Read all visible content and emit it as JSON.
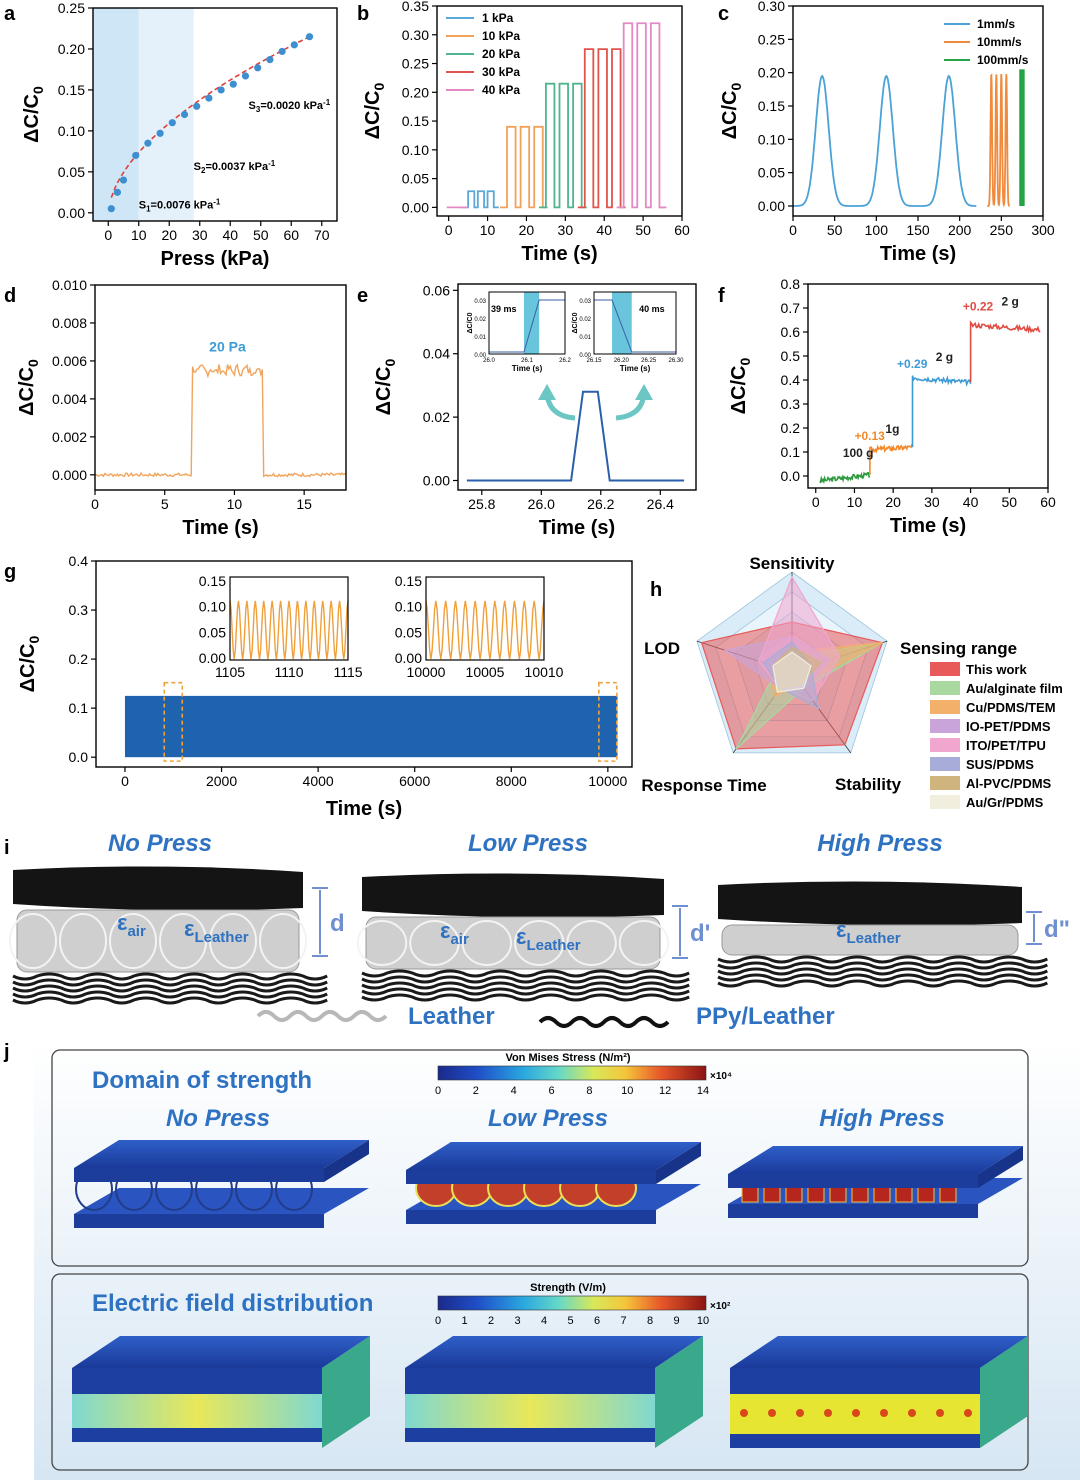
{
  "panel_letters": {
    "a": "a",
    "b": "b",
    "c": "c",
    "d": "d",
    "e": "e",
    "f": "f",
    "g": "g",
    "h": "h",
    "i": "i",
    "j": "j"
  },
  "chart_data": [
    {
      "panel": "a",
      "type": "scatter",
      "xlabel": "Press (kPa)",
      "ylabel": "ΔC/C0",
      "xlim": [
        -5,
        75
      ],
      "ylim": [
        -0.01,
        0.25
      ],
      "xticks": [
        "0",
        "10",
        "20",
        "30",
        "40",
        "50",
        "60",
        "70"
      ],
      "yticks": [
        "0.00",
        "0.05",
        "0.10",
        "0.15",
        "0.20",
        "0.25"
      ],
      "x": [
        1,
        3,
        5,
        9,
        13,
        17,
        21,
        25,
        29,
        33,
        37,
        41,
        45,
        49,
        53,
        57,
        61,
        66
      ],
      "y": [
        0.005,
        0.025,
        0.04,
        0.07,
        0.085,
        0.097,
        0.11,
        0.12,
        0.13,
        0.14,
        0.15,
        0.157,
        0.167,
        0.177,
        0.187,
        0.197,
        0.205,
        0.215
      ],
      "regions_kpa": [
        [
          0,
          10
        ],
        [
          10,
          28
        ]
      ],
      "annotations": [
        {
          "main": "S",
          "sub": "1",
          "val": "=0.0076 kPa",
          "sup": "-1",
          "x": 10,
          "y": 0.005
        },
        {
          "main": "S",
          "sub": "2",
          "val": "=0.0037 kPa",
          "sup": "-1",
          "x": 28,
          "y": 0.052
        },
        {
          "main": "S",
          "sub": "3",
          "val": "=0.0020 kPa",
          "sup": "-1",
          "x": 46,
          "y": 0.127
        }
      ]
    },
    {
      "panel": "b",
      "type": "line",
      "xlabel": "Time (s)",
      "ylabel": "ΔC/C0",
      "xlim": [
        -3,
        60
      ],
      "ylim": [
        -0.015,
        0.35
      ],
      "xticks": [
        "0",
        "10",
        "20",
        "30",
        "40",
        "50",
        "60"
      ],
      "yticks": [
        "0.00",
        "0.05",
        "0.10",
        "0.15",
        "0.20",
        "0.25",
        "0.30",
        "0.35"
      ],
      "series": [
        {
          "name": "1  kPa",
          "color": "#5aa8d8",
          "level": 0.028,
          "starts": [
            5,
            7.5,
            10
          ],
          "width": 1.6
        },
        {
          "name": "10 kPa",
          "color": "#f0a25a",
          "level": 0.14,
          "starts": [
            15,
            18.5,
            22
          ],
          "width": 2.2
        },
        {
          "name": "20 kPa",
          "color": "#4fb58e",
          "level": 0.215,
          "starts": [
            25,
            28.5,
            32
          ],
          "width": 2.2
        },
        {
          "name": "30 kPa",
          "color": "#e0544b",
          "level": 0.275,
          "starts": [
            35,
            38.5,
            42
          ],
          "width": 2.2
        },
        {
          "name": "40 kPa",
          "color": "#e38ac6",
          "level": 0.32,
          "starts": [
            45,
            48.5,
            52
          ],
          "width": 2.2
        }
      ]
    },
    {
      "panel": "c",
      "type": "line",
      "xlabel": "Time (s)",
      "ylabel": "ΔC/C0",
      "xlim": [
        0,
        300
      ],
      "ylim": [
        -0.015,
        0.3
      ],
      "xticks": [
        "0",
        "50",
        "100",
        "150",
        "200",
        "250",
        "300"
      ],
      "yticks": [
        "0.00",
        "0.05",
        "0.10",
        "0.15",
        "0.20",
        "0.25",
        "0.30"
      ],
      "series": [
        {
          "name": "1mm/s",
          "color": "#4aa2d6",
          "peaks": [
            35,
            112,
            187
          ],
          "peak": 0.195
        },
        {
          "name": "10mm/s",
          "color": "#f08a3c",
          "peaks": [
            238,
            244,
            250,
            256
          ],
          "peak": 0.198
        },
        {
          "name": "100mm/s",
          "color": "#24a447",
          "peaks": [
            272,
            273,
            274,
            275,
            276,
            277
          ],
          "peak": 0.205
        }
      ]
    },
    {
      "panel": "d",
      "type": "line",
      "xlabel": "Time (s)",
      "ylabel": "ΔC/C0",
      "xlim": [
        0,
        18
      ],
      "ylim": [
        -0.0008,
        0.01
      ],
      "xticks": [
        "0",
        "5",
        "10",
        "15"
      ],
      "yticks": [
        "0.000",
        "0.002",
        "0.004",
        "0.006",
        "0.008",
        "0.010"
      ],
      "on": [
        7,
        12
      ],
      "level": 0.0055,
      "base": 0.0,
      "color": "#f0a55d",
      "annotation": "20 Pa"
    },
    {
      "panel": "e",
      "type": "line",
      "xlabel": "Time (s)",
      "ylabel": "ΔC/C0",
      "xlim": [
        25.72,
        26.52
      ],
      "ylim": [
        -0.003,
        0.062
      ],
      "xticks": [
        "25.8",
        "26.0",
        "26.2",
        "26.4"
      ],
      "yticks": [
        "0.00",
        "0.02",
        "0.04",
        "0.06"
      ],
      "x": [
        25.75,
        26.1,
        26.14,
        26.19,
        26.23,
        26.48
      ],
      "y": [
        0,
        0,
        0.028,
        0.028,
        0,
        0
      ],
      "color": "#2a5faa",
      "insets": [
        {
          "label": "39 ms",
          "xticks": [
            "26.0",
            "26.1",
            "26.2"
          ],
          "yticks": [
            "0.00",
            "0.01",
            "0.02",
            "0.03"
          ],
          "xlabel": "Time (s)",
          "ylabel": "ΔC/C0"
        },
        {
          "label": "40 ms",
          "xticks": [
            "26.15",
            "26.20",
            "26.25",
            "26.30"
          ],
          "yticks": [
            "0.00",
            "0.01",
            "0.02",
            "0.03"
          ],
          "xlabel": "Time (s)",
          "ylabel": "ΔC/C0"
        }
      ]
    },
    {
      "panel": "f",
      "type": "line",
      "xlabel": "Time (s)",
      "ylabel": "ΔC/C0",
      "xlim": [
        -2,
        60
      ],
      "ylim": [
        -0.05,
        0.8
      ],
      "xticks": [
        "0",
        "10",
        "20",
        "30",
        "40",
        "50",
        "60"
      ],
      "yticks": [
        "0.0",
        "0.1",
        "0.2",
        "0.3",
        "0.4",
        "0.5",
        "0.6",
        "0.7",
        "0.8"
      ],
      "segments": [
        {
          "x0": 1,
          "x1": 14,
          "y0": -0.02,
          "y1": 0.005,
          "color": "#2f9a3f"
        },
        {
          "x0": 14,
          "x1": 25,
          "y0": 0.11,
          "y1": 0.12,
          "color": "#f08a2c"
        },
        {
          "x0": 25,
          "x1": 40,
          "y0": 0.41,
          "y1": 0.39,
          "color": "#3d9bd5"
        },
        {
          "x0": 40,
          "x1": 58,
          "y0": 0.63,
          "y1": 0.61,
          "color": "#e04c43"
        }
      ],
      "annotations": [
        {
          "text": "100 g",
          "x": 7,
          "y": 0.08,
          "color": "#222222"
        },
        {
          "text": "+0.13",
          "x": 10,
          "y": 0.15,
          "color": "#f08a2c"
        },
        {
          "text": "1g",
          "x": 18,
          "y": 0.18,
          "color": "#222222"
        },
        {
          "text": "+0.29",
          "x": 21,
          "y": 0.45,
          "color": "#3d9bd5"
        },
        {
          "text": "2 g",
          "x": 31,
          "y": 0.48,
          "color": "#222222"
        },
        {
          "text": "+0.22",
          "x": 38,
          "y": 0.69,
          "color": "#e04c43"
        },
        {
          "text": "2 g",
          "x": 48,
          "y": 0.71,
          "color": "#222222"
        }
      ]
    },
    {
      "panel": "g",
      "type": "area",
      "xlabel": "Time (s)",
      "ylabel": "ΔC/C0",
      "xlim": [
        -600,
        10500
      ],
      "ylim": [
        -0.02,
        0.4
      ],
      "xticks": [
        "0",
        "2000",
        "4000",
        "6000",
        "8000",
        "10000"
      ],
      "yticks": [
        "0.0",
        "0.1",
        "0.2",
        "0.3",
        "0.4"
      ],
      "band": [
        0,
        10200,
        0.0,
        0.125
      ],
      "color": "#1f62ae",
      "insets": [
        {
          "xticks": [
            "1105",
            "1110",
            "1115"
          ],
          "yticks": [
            "0.00",
            "0.05",
            "0.10",
            "0.15"
          ],
          "cycles": 14
        },
        {
          "xticks": [
            "10000",
            "10005",
            "10010"
          ],
          "yticks": [
            "0.00",
            "0.05",
            "0.10",
            "0.15"
          ],
          "cycles": 12
        }
      ],
      "highlight_x": [
        1000,
        10000
      ]
    },
    {
      "panel": "h",
      "type": "radar",
      "axes": [
        "Sensitivity",
        "Sensing range",
        "Stability",
        "Response Time",
        "LOD"
      ],
      "series": [
        {
          "name": "This work",
          "color": "#e85a5a",
          "values": [
            0.5,
            0.95,
            0.9,
            0.95,
            0.95
          ]
        },
        {
          "name": "Au/alginate film",
          "color": "#a8d8a0",
          "values": [
            0.15,
            0.95,
            0.2,
            0.95,
            0.15
          ]
        },
        {
          "name": "Cu/PDMS/TEM",
          "color": "#f2b06a",
          "values": [
            0.2,
            0.95,
            0.15,
            0.3,
            0.25
          ]
        },
        {
          "name": "IO-PET/PDMS",
          "color": "#c9a4db",
          "values": [
            0.35,
            0.4,
            0.2,
            0.2,
            0.7
          ]
        },
        {
          "name": "ITO/PET/TPU",
          "color": "#f0a6cf",
          "values": [
            0.95,
            0.5,
            0.35,
            0.2,
            0.35
          ]
        },
        {
          "name": "SUS/PDMS",
          "color": "#a7add8",
          "values": [
            0.3,
            0.2,
            0.45,
            0.2,
            0.3
          ]
        },
        {
          "name": "Al-PVC/PDMS",
          "color": "#cfb47e",
          "values": [
            0.25,
            0.3,
            0.15,
            0.2,
            0.2
          ]
        },
        {
          "name": "Au/Gr/PDMS",
          "color": "#f1eedd",
          "values": [
            0.2,
            0.2,
            0.2,
            0.25,
            0.2
          ]
        }
      ]
    }
  ],
  "panel_i": {
    "titles": [
      "No Press",
      "Low Press",
      "High Press"
    ],
    "eps": "ε",
    "sub_air": "air",
    "sub_leather": "Leather",
    "gap_labels": [
      "d",
      "d'",
      "d\""
    ],
    "legend": {
      "leather": "Leather",
      "ppy": "PPy/Leather"
    }
  },
  "panel_j": {
    "section1": "Domain of strength",
    "section2": "Electric field distribution",
    "titles": [
      "No Press",
      "Low Press",
      "High Press"
    ],
    "colorbar1": {
      "title": "Von Mises Stress (N/m²)",
      "ticks": [
        "0",
        "2",
        "4",
        "6",
        "8",
        "10",
        "12",
        "14"
      ],
      "exp": "×10⁴"
    },
    "colorbar2": {
      "title": "Strength (V/m)",
      "ticks": [
        "0",
        "1",
        "2",
        "3",
        "4",
        "5",
        "6",
        "7",
        "8",
        "9",
        "10"
      ],
      "exp": "×10²"
    }
  }
}
